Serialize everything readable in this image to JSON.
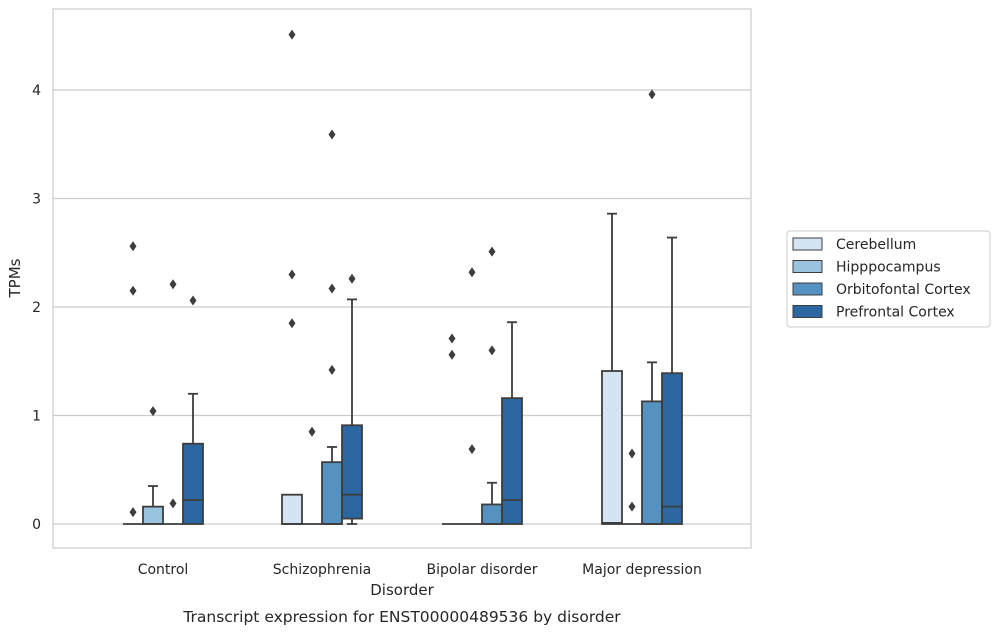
{
  "caption": "Transcript expression for ENST00000489536 by disorder",
  "chart_data": {
    "type": "boxplot",
    "xlabel": "Disorder",
    "ylabel": "TPMs",
    "ylim": [
      -0.22,
      4.75
    ],
    "yticks": [
      0,
      1,
      2,
      3,
      4
    ],
    "grid": "horizontal",
    "legend_position": "right",
    "categories": [
      "Control",
      "Schizophrenia",
      "Bipolar disorder",
      "Major depression"
    ],
    "series": [
      {
        "name": "Cerebellum",
        "color": "#d4e4f2",
        "boxes": [
          {
            "whisker_low": 0,
            "q1": 0,
            "median": 0,
            "q3": 0,
            "whisker_high": 0,
            "outliers": [
              0.11,
              2.15,
              2.56
            ]
          },
          {
            "whisker_low": 0,
            "q1": 0,
            "median": 0,
            "q3": 0.27,
            "whisker_high": 0.27,
            "outliers": [
              1.85,
              2.3,
              4.51
            ]
          },
          {
            "whisker_low": 0,
            "q1": 0,
            "median": 0,
            "q3": 0,
            "whisker_high": 0,
            "outliers": [
              1.56,
              1.71
            ]
          },
          {
            "whisker_low": 0,
            "q1": 0,
            "median": 0.01,
            "q3": 1.41,
            "whisker_high": 2.86,
            "outliers": []
          }
        ]
      },
      {
        "name": "Hipppocampus",
        "color": "#9ac3de",
        "boxes": [
          {
            "whisker_low": 0,
            "q1": 0,
            "median": 0,
            "q3": 0.16,
            "whisker_high": 0.35,
            "outliers": [
              1.04
            ]
          },
          {
            "whisker_low": 0,
            "q1": 0,
            "median": 0,
            "q3": 0,
            "whisker_high": 0,
            "outliers": [
              0.85
            ]
          },
          {
            "whisker_low": 0,
            "q1": 0,
            "median": 0,
            "q3": 0,
            "whisker_high": 0,
            "outliers": [
              0.69,
              2.32
            ]
          },
          {
            "whisker_low": 0,
            "q1": 0,
            "median": 0,
            "q3": 0,
            "whisker_high": 0,
            "outliers": [
              0.16,
              0.65
            ]
          }
        ]
      },
      {
        "name": "Orbitofontal Cortex",
        "color": "#5592c1",
        "boxes": [
          {
            "whisker_low": 0,
            "q1": 0,
            "median": 0,
            "q3": 0,
            "whisker_high": 0,
            "outliers": [
              0.19,
              2.21
            ]
          },
          {
            "whisker_low": 0,
            "q1": 0,
            "median": 0,
            "q3": 0.57,
            "whisker_high": 0.71,
            "outliers": [
              1.42,
              2.17,
              3.59
            ]
          },
          {
            "whisker_low": 0,
            "q1": 0,
            "median": 0,
            "q3": 0.18,
            "whisker_high": 0.38,
            "outliers": [
              1.6,
              2.51
            ]
          },
          {
            "whisker_low": 0,
            "q1": 0,
            "median": 0,
            "q3": 1.13,
            "whisker_high": 1.49,
            "outliers": [
              3.96
            ]
          }
        ]
      },
      {
        "name": "Prefrontal Cortex",
        "color": "#2c67a1",
        "boxes": [
          {
            "whisker_low": 0,
            "q1": 0,
            "median": 0.22,
            "q3": 0.74,
            "whisker_high": 1.2,
            "outliers": [
              2.06
            ]
          },
          {
            "whisker_low": 0,
            "q1": 0.05,
            "median": 0.27,
            "q3": 0.91,
            "whisker_high": 2.07,
            "outliers": [
              2.26
            ]
          },
          {
            "whisker_low": 0,
            "q1": 0,
            "median": 0.22,
            "q3": 1.16,
            "whisker_high": 1.86,
            "outliers": []
          },
          {
            "whisker_low": 0,
            "q1": 0,
            "median": 0.16,
            "q3": 1.39,
            "whisker_high": 2.64,
            "outliers": []
          }
        ]
      }
    ]
  }
}
